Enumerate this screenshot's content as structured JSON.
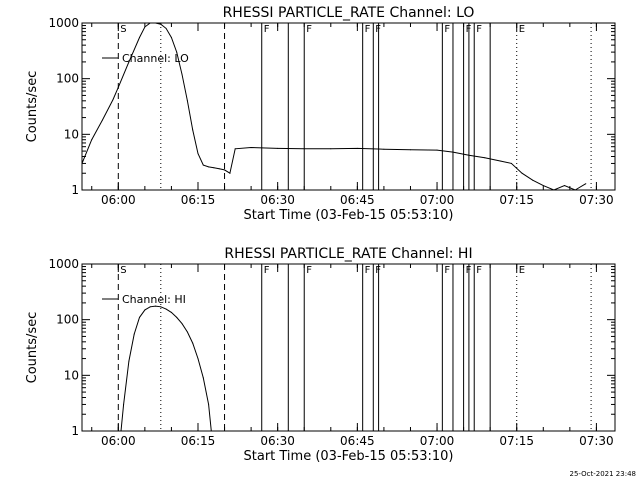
{
  "footer_timestamp": "25-Oct-2021 23:48",
  "chart_data": [
    {
      "type": "line",
      "title": "RHESSI PARTICLE_RATE Channel: LO",
      "xlabel": "Start Time (03-Feb-15 05:53:10)",
      "ylabel": "Counts/sec",
      "y_scale": "log",
      "xlim": [
        "05:53:10",
        "07:33:30"
      ],
      "ylim": [
        1,
        1000
      ],
      "x_ticks": [
        "06:00",
        "06:15",
        "06:30",
        "06:45",
        "07:00",
        "07:15",
        "07:30"
      ],
      "y_ticks": [
        "1",
        "10",
        "100",
        "1000"
      ],
      "legend": {
        "label": "Channel: LO",
        "placement": "top-left"
      },
      "markers": [
        {
          "label": "S",
          "time": "06:00",
          "style": "dashed"
        },
        {
          "label": "",
          "time": "06:20",
          "style": "dashed"
        },
        {
          "label": "",
          "time": "06:08",
          "style": "dotted"
        },
        {
          "label": "F",
          "time": "06:27",
          "style": "solid"
        },
        {
          "label": "",
          "time": "06:32",
          "style": "solid"
        },
        {
          "label": "F",
          "time": "06:35",
          "style": "solid"
        },
        {
          "label": "F",
          "time": "06:46",
          "style": "solid"
        },
        {
          "label": "F",
          "time": "06:48",
          "style": "solid"
        },
        {
          "label": "",
          "time": "06:49",
          "style": "solid"
        },
        {
          "label": "F",
          "time": "07:01",
          "style": "solid"
        },
        {
          "label": "",
          "time": "07:03",
          "style": "solid"
        },
        {
          "label": "F",
          "time": "07:05",
          "style": "solid"
        },
        {
          "label": "",
          "time": "07:06",
          "style": "solid"
        },
        {
          "label": "F",
          "time": "07:07",
          "style": "solid"
        },
        {
          "label": "",
          "time": "07:10",
          "style": "solid"
        },
        {
          "label": "E",
          "time": "07:15",
          "style": "dotted"
        },
        {
          "label": "",
          "time": "07:29",
          "style": "dotted"
        }
      ],
      "series": [
        {
          "name": "Channel: LO",
          "x": [
            "05:53:10",
            "05:55",
            "05:57",
            "05:59",
            "06:00",
            "06:02",
            "06:04",
            "06:05",
            "06:06",
            "06:07",
            "06:08",
            "06:09",
            "06:10",
            "06:11",
            "06:12",
            "06:13",
            "06:14",
            "06:15",
            "06:16",
            "06:17",
            "06:18",
            "06:19",
            "06:20",
            "06:21",
            "06:22",
            "06:25",
            "06:30",
            "06:35",
            "06:40",
            "06:45",
            "06:50",
            "06:55",
            "07:00",
            "07:03",
            "07:06",
            "07:09",
            "07:12",
            "07:14",
            "07:16",
            "07:18",
            "07:20",
            "07:22",
            "07:24",
            "07:26",
            "07:28"
          ],
          "y": [
            3,
            8,
            18,
            42,
            70,
            200,
            550,
            850,
            1000,
            1000,
            950,
            800,
            550,
            300,
            120,
            40,
            12,
            4.5,
            2.8,
            2.6,
            2.5,
            2.4,
            2.3,
            2.0,
            5.5,
            5.8,
            5.6,
            5.5,
            5.5,
            5.6,
            5.4,
            5.3,
            5.2,
            4.8,
            4.2,
            3.8,
            3.3,
            3.0,
            2.0,
            1.5,
            1.2,
            1.0,
            1.2,
            1.0,
            1.3
          ]
        }
      ]
    },
    {
      "type": "line",
      "title": "RHESSI PARTICLE_RATE Channel: HI",
      "xlabel": "Start Time (03-Feb-15 05:53:10)",
      "ylabel": "Counts/sec",
      "y_scale": "log",
      "xlim": [
        "05:53:10",
        "07:33:30"
      ],
      "ylim": [
        1,
        1000
      ],
      "x_ticks": [
        "06:00",
        "06:15",
        "06:30",
        "06:45",
        "07:00",
        "07:15",
        "07:30"
      ],
      "y_ticks": [
        "1",
        "10",
        "100",
        "1000"
      ],
      "legend": {
        "label": "Channel: HI",
        "placement": "top-left"
      },
      "markers": [
        {
          "label": "S",
          "time": "06:00",
          "style": "dashed"
        },
        {
          "label": "",
          "time": "06:20",
          "style": "dashed"
        },
        {
          "label": "",
          "time": "06:08",
          "style": "dotted"
        },
        {
          "label": "F",
          "time": "06:27",
          "style": "solid"
        },
        {
          "label": "",
          "time": "06:32",
          "style": "solid"
        },
        {
          "label": "F",
          "time": "06:35",
          "style": "solid"
        },
        {
          "label": "F",
          "time": "06:46",
          "style": "solid"
        },
        {
          "label": "F",
          "time": "06:48",
          "style": "solid"
        },
        {
          "label": "",
          "time": "06:49",
          "style": "solid"
        },
        {
          "label": "F",
          "time": "07:01",
          "style": "solid"
        },
        {
          "label": "",
          "time": "07:03",
          "style": "solid"
        },
        {
          "label": "F",
          "time": "07:05",
          "style": "solid"
        },
        {
          "label": "",
          "time": "07:06",
          "style": "solid"
        },
        {
          "label": "F",
          "time": "07:07",
          "style": "solid"
        },
        {
          "label": "",
          "time": "07:10",
          "style": "solid"
        },
        {
          "label": "E",
          "time": "07:15",
          "style": "dotted"
        },
        {
          "label": "",
          "time": "07:29",
          "style": "dotted"
        }
      ],
      "series": [
        {
          "name": "Channel: HI",
          "x": [
            "06:00:30",
            "06:01",
            "06:02",
            "06:03",
            "06:04",
            "06:05",
            "06:06",
            "06:07",
            "06:08",
            "06:09",
            "06:10",
            "06:11",
            "06:12",
            "06:13",
            "06:14",
            "06:15",
            "06:16",
            "06:17",
            "06:17:30"
          ],
          "y": [
            1,
            3,
            18,
            55,
            110,
            150,
            170,
            175,
            170,
            155,
            135,
            110,
            85,
            60,
            38,
            20,
            9,
            3,
            1
          ]
        }
      ]
    }
  ]
}
